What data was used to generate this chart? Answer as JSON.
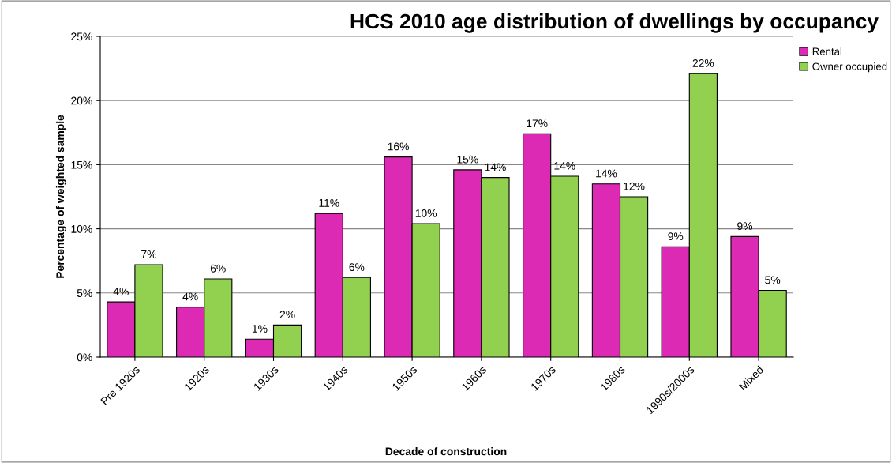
{
  "chart_data": {
    "type": "bar",
    "title": "HCS 2010 age distribution of dwellings by occupancy",
    "xlabel": "Decade of construction",
    "ylabel": "Percentage of weighted sample",
    "categories": [
      "Pre 1920s",
      "1920s",
      "1930s",
      "1940s",
      "1950s",
      "1960s",
      "1970s",
      "1980s",
      "1990s/2000s",
      "Mixed"
    ],
    "series": [
      {
        "name": "Rental",
        "color": "#dd2ab5",
        "values": [
          4.3,
          3.9,
          1.4,
          11.2,
          15.6,
          14.6,
          17.4,
          13.5,
          8.6,
          9.4
        ],
        "value_labels": [
          "4%",
          "4%",
          "1%",
          "11%",
          "16%",
          "15%",
          "17%",
          "14%",
          "9%",
          "9%"
        ]
      },
      {
        "name": "Owner occupied",
        "color": "#92d050",
        "values": [
          7.2,
          6.1,
          2.5,
          6.2,
          10.4,
          14.0,
          14.1,
          12.5,
          22.1,
          5.2
        ],
        "value_labels": [
          "7%",
          "6%",
          "2%",
          "6%",
          "10%",
          "14%",
          "14%",
          "12%",
          "22%",
          "5%"
        ]
      }
    ],
    "ylim": [
      0,
      25
    ],
    "yticks": [
      {
        "value": 0,
        "label": "0%"
      },
      {
        "value": 5,
        "label": "5%"
      },
      {
        "value": 10,
        "label": "10%"
      },
      {
        "value": 15,
        "label": "15%"
      },
      {
        "value": 20,
        "label": "20%"
      },
      {
        "value": 25,
        "label": "25%"
      }
    ],
    "grid": "y",
    "legend": "top right"
  }
}
